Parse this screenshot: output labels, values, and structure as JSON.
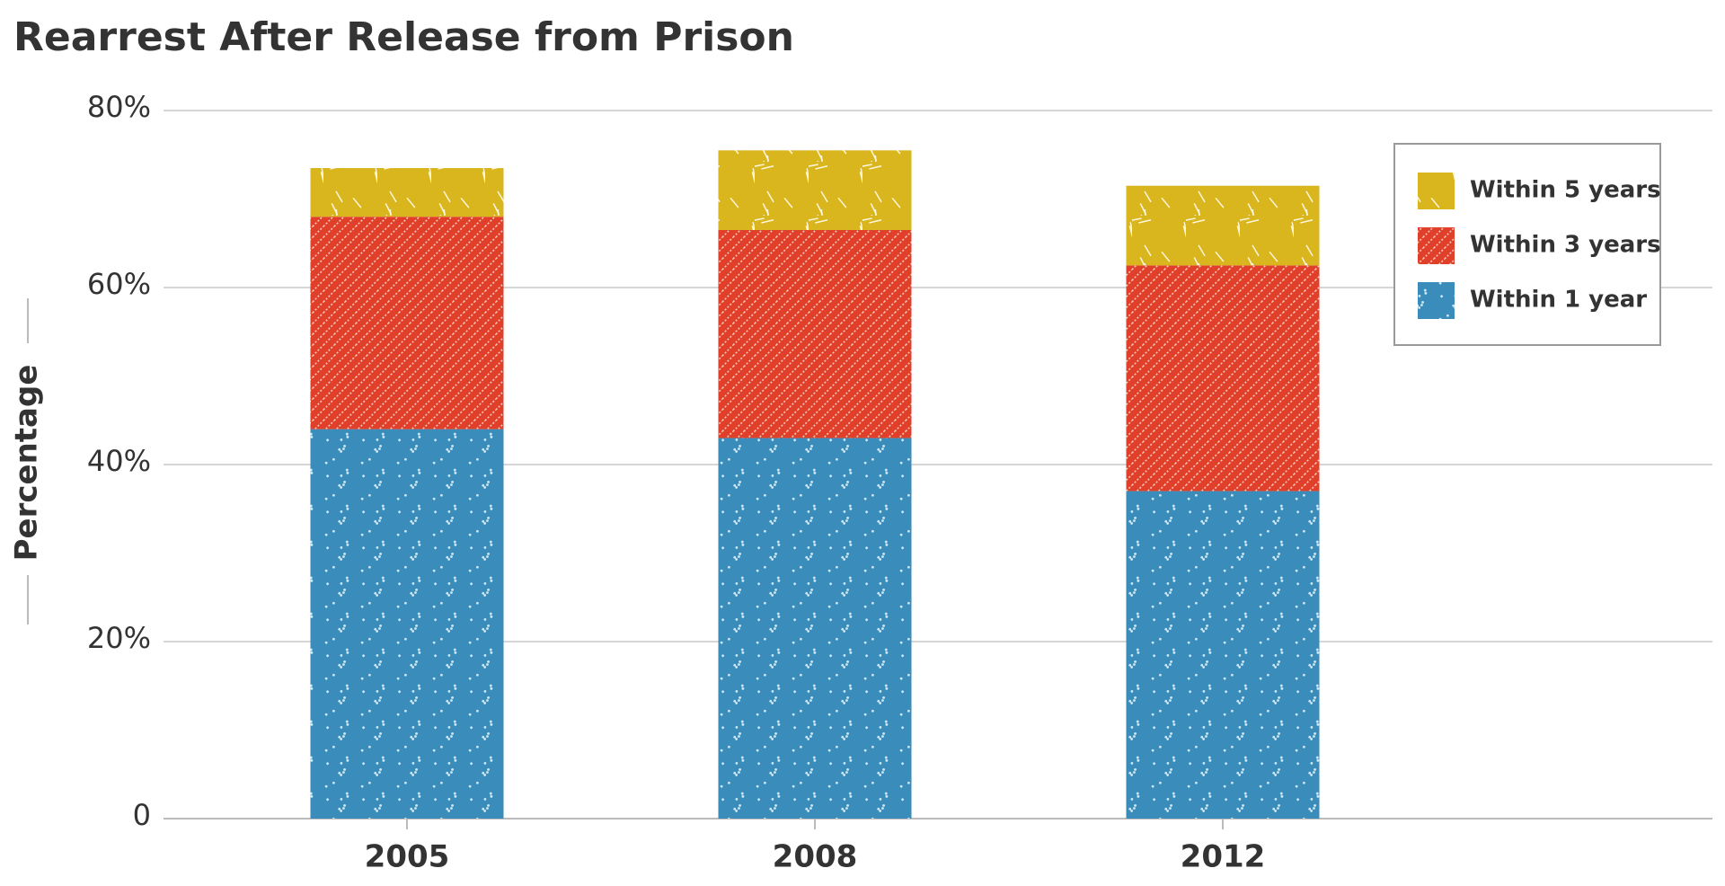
{
  "chart_data": {
    "type": "stacked-bar",
    "title": "Rearrest After Release from Prison",
    "y_label": "Percentage",
    "categories": [
      "2005",
      "2008",
      "2012"
    ],
    "series": [
      {
        "name": "Within 1 year",
        "color": "#3a8dbb",
        "values": [
          44,
          43,
          37
        ]
      },
      {
        "name": "Within 3 years",
        "color": "#e0402a",
        "values": [
          24,
          23.5,
          25.5
        ]
      },
      {
        "name": "Within 5 years",
        "color": "#d9b51e",
        "values": [
          5.5,
          9,
          9
        ]
      }
    ],
    "ylim": [
      0,
      80
    ],
    "yticks": [
      0,
      {
        "value": 20,
        "label": "20%"
      },
      {
        "value": 40,
        "label": "40%"
      },
      {
        "value": 60,
        "label": "60%"
      },
      {
        "value": 80,
        "label": "80%"
      }
    ],
    "grid": true,
    "legend": "upper right"
  }
}
